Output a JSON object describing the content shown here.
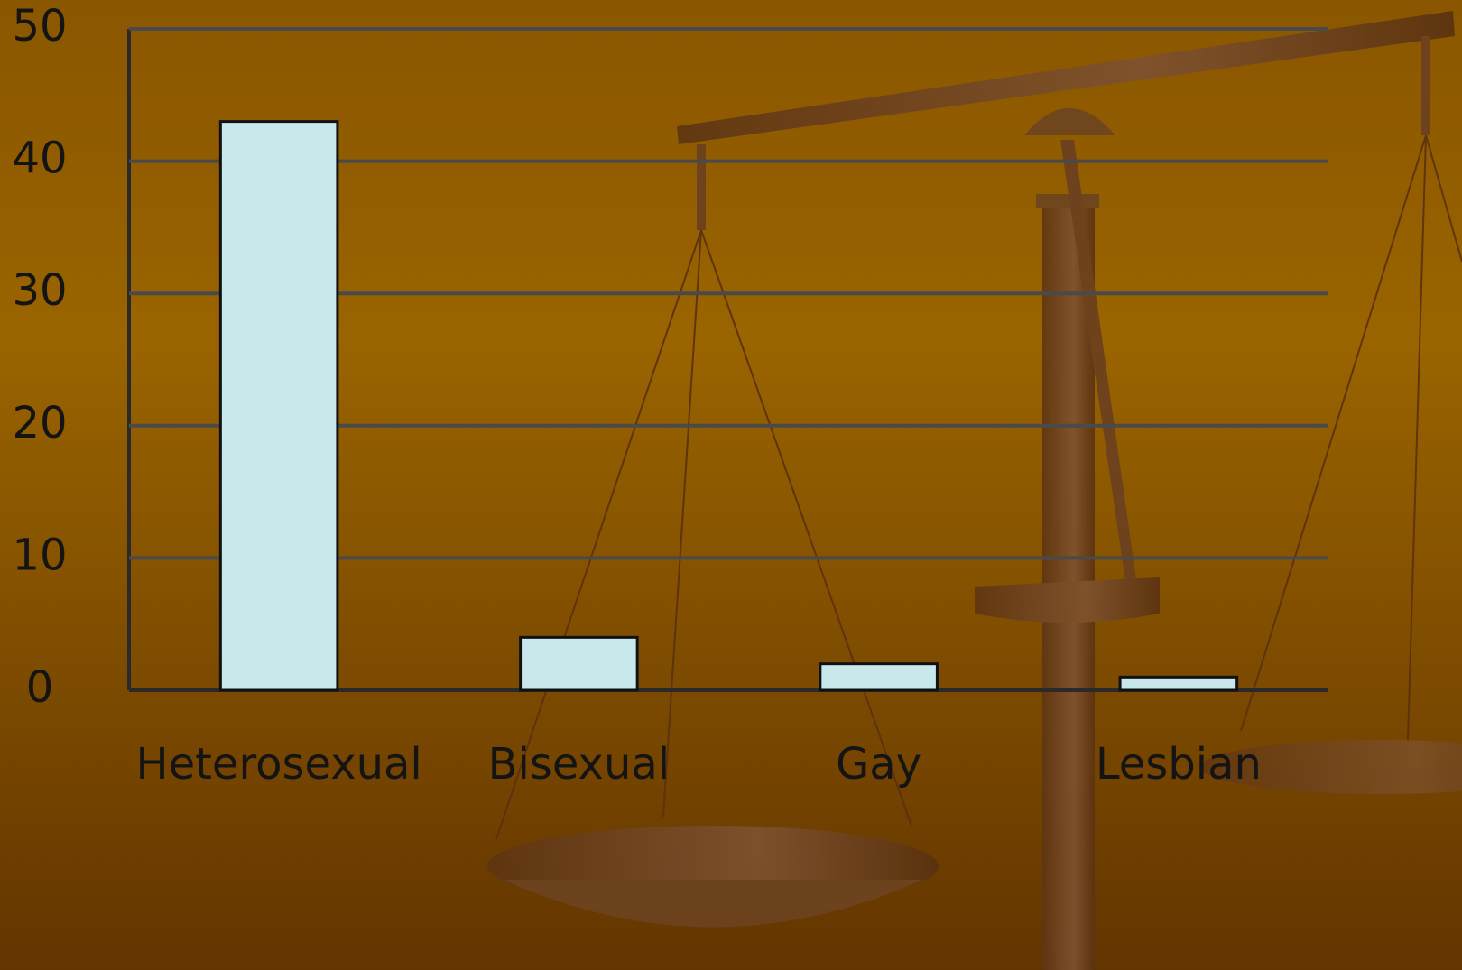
{
  "chart_data": {
    "type": "bar",
    "categories": [
      "Heterosexual",
      "Bisexual",
      "Gay",
      "Lesbian"
    ],
    "values": [
      43,
      4,
      2,
      1
    ],
    "color": "#c8e8ec",
    "ylim": [
      0,
      50
    ],
    "yticks": [
      0,
      10,
      20,
      30,
      40,
      50
    ],
    "grid": true
  }
}
